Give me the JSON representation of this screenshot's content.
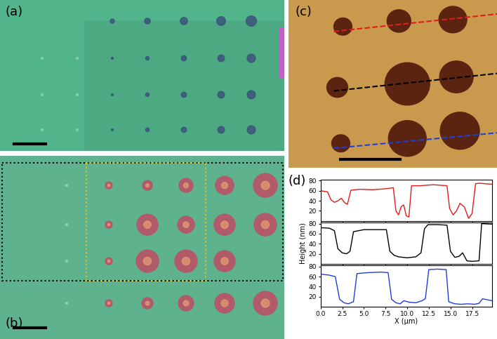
{
  "image_panels": [
    "(a)",
    "(b)",
    "(c)"
  ],
  "chart_data": {
    "type": "line",
    "label": "(d)",
    "x_label": "X (μm)",
    "y_label": "Height (nm)",
    "xlim": [
      0.0,
      19.8
    ],
    "xticks": [
      0.0,
      2.5,
      5.0,
      7.5,
      10.0,
      12.5,
      15.0,
      17.5
    ],
    "ylim": [
      0,
      82
    ],
    "yticks": [
      20,
      40,
      60,
      80
    ],
    "series": [
      {
        "color": "#e41a1c",
        "x": [
          0.0,
          0.8,
          1.2,
          1.6,
          2.0,
          2.4,
          2.8,
          3.1,
          3.5,
          4.5,
          6.0,
          7.5,
          8.4,
          8.7,
          9.0,
          9.3,
          9.6,
          9.9,
          10.2,
          10.5,
          11.5,
          13.0,
          14.6,
          14.9,
          15.3,
          15.7,
          16.1,
          16.6,
          17.1,
          17.5,
          17.9,
          18.3,
          19.8
        ],
        "values": [
          60,
          58,
          42,
          37,
          40,
          45,
          36,
          33,
          61,
          63,
          62,
          64,
          66,
          20,
          12,
          28,
          32,
          10,
          8,
          70,
          70,
          72,
          70,
          25,
          12,
          20,
          35,
          28,
          5,
          15,
          74,
          75,
          73
        ]
      },
      {
        "color": "#000000",
        "x": [
          0.0,
          1.0,
          1.6,
          2.0,
          2.5,
          3.0,
          3.4,
          3.8,
          5.0,
          6.5,
          7.6,
          8.0,
          8.5,
          9.0,
          10.0,
          11.0,
          11.6,
          12.0,
          12.4,
          13.5,
          14.6,
          15.0,
          15.5,
          16.0,
          16.4,
          16.9,
          17.5,
          18.3,
          18.6,
          19.8
        ],
        "values": [
          72,
          71,
          66,
          30,
          22,
          20,
          25,
          64,
          68,
          68,
          68,
          25,
          17,
          14,
          12,
          14,
          22,
          70,
          78,
          78,
          77,
          25,
          13,
          15,
          22,
          6,
          5,
          6,
          80,
          79
        ]
      },
      {
        "color": "#1f3fd6",
        "x": [
          0.0,
          1.0,
          1.7,
          2.2,
          2.7,
          3.2,
          3.8,
          4.2,
          5.5,
          7.0,
          7.8,
          8.2,
          8.7,
          9.2,
          9.6,
          10.3,
          11.0,
          11.7,
          12.1,
          12.5,
          13.5,
          14.5,
          14.8,
          15.5,
          16.2,
          17.0,
          17.8,
          18.3,
          18.7,
          19.8
        ],
        "values": [
          65,
          63,
          60,
          15,
          8,
          6,
          10,
          66,
          68,
          69,
          68,
          15,
          8,
          6,
          12,
          9,
          8,
          12,
          16,
          74,
          75,
          74,
          10,
          6,
          5,
          6,
          5,
          7,
          16,
          12
        ]
      }
    ]
  }
}
